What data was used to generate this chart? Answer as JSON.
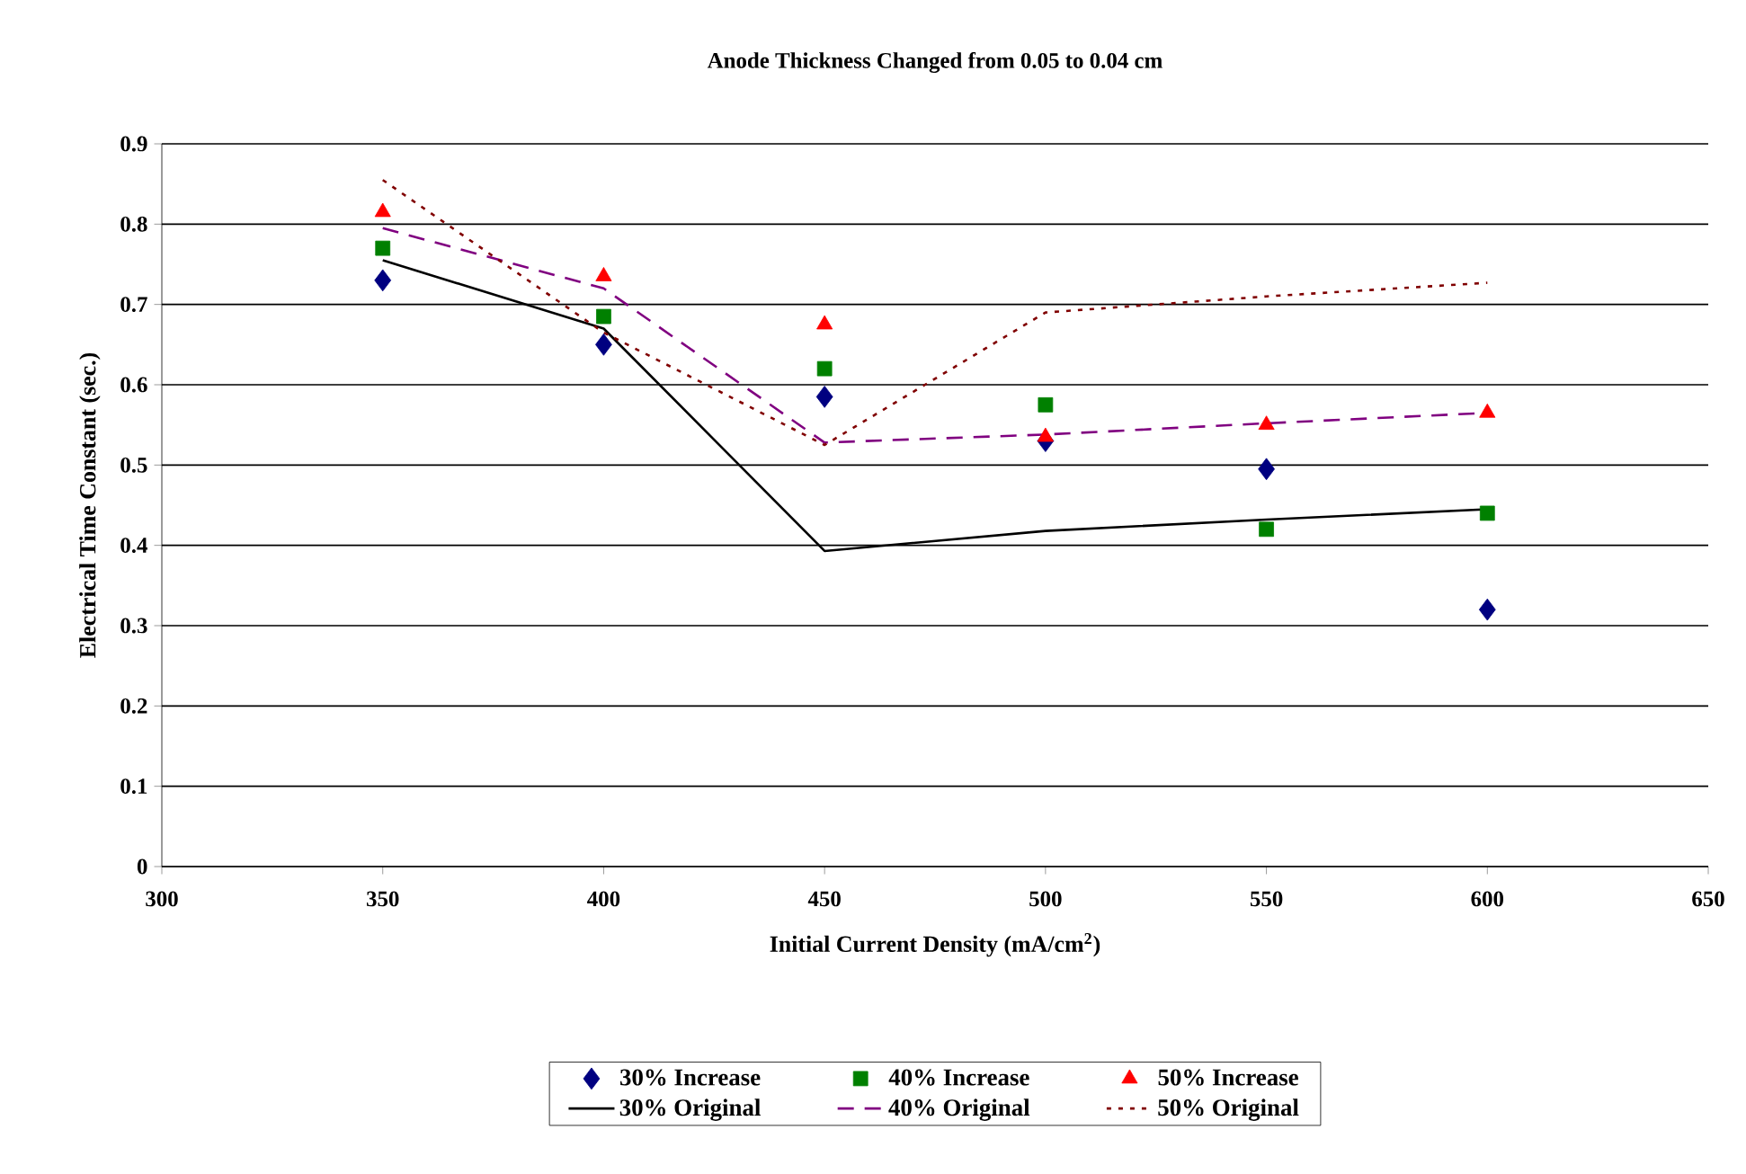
{
  "chart_data": {
    "type": "line",
    "title": "Anode Thickness Changed from 0.05 to 0.04 cm",
    "xlabel": "Initial Current Density (mA/cm$^{2}$)",
    "ylabel": "Electrical Time Constant (sec.)",
    "x": [
      350,
      400,
      450,
      500,
      550,
      600
    ],
    "xlim": [
      300,
      650
    ],
    "xticks": [
      300,
      350,
      400,
      450,
      500,
      550,
      600,
      650
    ],
    "ylim": [
      0,
      0.9
    ],
    "yticks": [
      0,
      0.1,
      0.2,
      0.3,
      0.4,
      0.5,
      0.6,
      0.7,
      0.8,
      0.9
    ],
    "grid": "y",
    "legend": "bottom",
    "series": [
      {
        "name": "30% Increase",
        "type": "scatter",
        "marker": "diamond",
        "color": "#000080",
        "values": [
          0.73,
          0.65,
          0.585,
          0.53,
          0.495,
          0.32
        ]
      },
      {
        "name": "40% Increase",
        "type": "scatter",
        "marker": "square",
        "color": "#008000",
        "values": [
          0.77,
          0.685,
          0.62,
          0.575,
          0.42,
          0.44
        ]
      },
      {
        "name": "50% Increase",
        "type": "scatter",
        "marker": "triangle",
        "color": "#ff0000",
        "values": [
          0.815,
          0.735,
          0.675,
          0.535,
          0.55,
          0.565
        ]
      },
      {
        "name": "30% Original",
        "line_style": "solid",
        "color": "#000000",
        "values": [
          0.755,
          0.67,
          0.393,
          0.418,
          0.432,
          0.445
        ]
      },
      {
        "name": "40% Original",
        "line_style": "dashed",
        "color": "#800080",
        "values": [
          0.795,
          0.72,
          0.528,
          0.538,
          0.552,
          0.565
        ]
      },
      {
        "name": "50% Original",
        "line_style": "dotted",
        "color": "#800000",
        "values": [
          0.855,
          0.665,
          0.525,
          0.69,
          0.71,
          0.727
        ]
      }
    ]
  }
}
